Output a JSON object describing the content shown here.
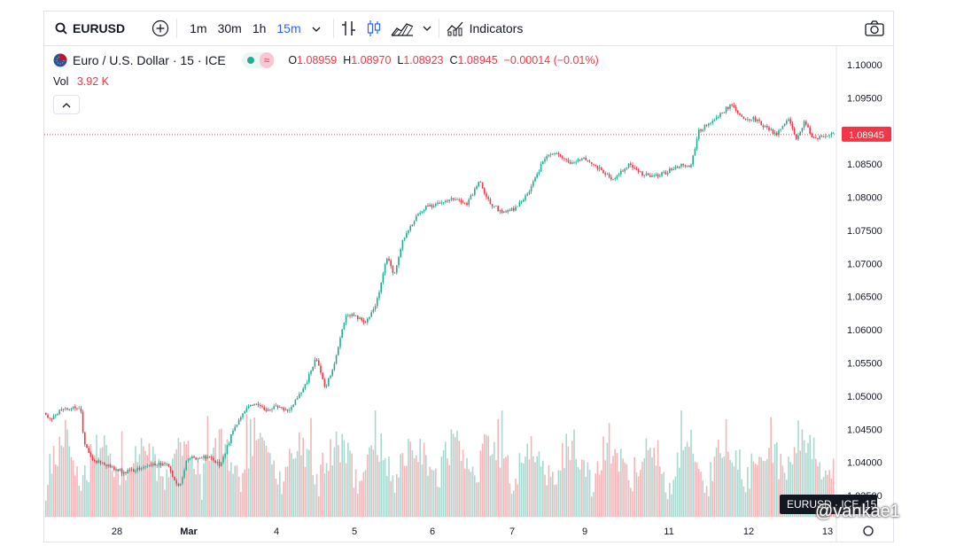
{
  "toolbar": {
    "symbol": "EURUSD",
    "intervals": [
      "1m",
      "30m",
      "1h",
      "15m"
    ],
    "active_interval": "15m",
    "indicators_label": "Indicators"
  },
  "legend": {
    "title": "Euro / U.S. Dollar · 15 · ICE",
    "open_label": "O",
    "open": "1.08959",
    "high_label": "H",
    "high": "1.08970",
    "low_label": "L",
    "low": "1.08923",
    "close_label": "C",
    "close": "1.08945",
    "change": "−0.00014 (−0.01%)"
  },
  "volume": {
    "label": "Vol",
    "value": "3.92 K"
  },
  "price_tag": "1.08945",
  "symbol_tag": "EURUSD · ICE, 15",
  "watermark": "@vankae1",
  "colors": {
    "up": "#22ab94",
    "down": "#f23645",
    "up_vol": "#a8d8d0",
    "down_vol": "#f5b5b8"
  },
  "chart_data": {
    "type": "candlestick",
    "ylim": [
      1.0318,
      1.1028
    ],
    "y_ticks": [
      "1.10000",
      "1.09500",
      "1.09000",
      "1.08500",
      "1.08000",
      "1.07500",
      "1.07000",
      "1.06500",
      "1.06000",
      "1.05500",
      "1.05000",
      "1.04500",
      "1.04000",
      "1.03500"
    ],
    "x_ticks": [
      "28",
      "Mar",
      "4",
      "5",
      "6",
      "7",
      "9",
      "11",
      "12",
      "13"
    ],
    "last_price": 1.08945,
    "path_series": {
      "name": "EURUSD close (approx.)",
      "points": [
        [
          0,
          1.0475
        ],
        [
          6,
          1.0465
        ],
        [
          16,
          1.0477
        ],
        [
          28,
          1.0482
        ],
        [
          40,
          1.0484
        ],
        [
          44,
          1.0428
        ],
        [
          54,
          1.0405
        ],
        [
          70,
          1.0395
        ],
        [
          88,
          1.0385
        ],
        [
          106,
          1.039
        ],
        [
          124,
          1.0398
        ],
        [
          140,
          1.0395
        ],
        [
          148,
          1.0365
        ],
        [
          154,
          1.037
        ],
        [
          160,
          1.0405
        ],
        [
          174,
          1.0408
        ],
        [
          188,
          1.0407
        ],
        [
          198,
          1.0395
        ],
        [
          210,
          1.044
        ],
        [
          226,
          1.048
        ],
        [
          238,
          1.0487
        ],
        [
          246,
          1.048
        ],
        [
          260,
          1.0483
        ],
        [
          276,
          1.048
        ],
        [
          292,
          1.051
        ],
        [
          306,
          1.056
        ],
        [
          316,
          1.051
        ],
        [
          328,
          1.0555
        ],
        [
          340,
          1.0625
        ],
        [
          352,
          1.062
        ],
        [
          362,
          1.0612
        ],
        [
          374,
          1.064
        ],
        [
          386,
          1.071
        ],
        [
          394,
          1.068
        ],
        [
          404,
          1.0735
        ],
        [
          416,
          1.0765
        ],
        [
          430,
          1.0785
        ],
        [
          446,
          1.0792
        ],
        [
          460,
          1.08
        ],
        [
          476,
          1.0788
        ],
        [
          490,
          1.0825
        ],
        [
          500,
          1.0795
        ],
        [
          514,
          1.0778
        ],
        [
          530,
          1.0782
        ],
        [
          548,
          1.0812
        ],
        [
          564,
          1.086
        ],
        [
          578,
          1.0865
        ],
        [
          592,
          1.085
        ],
        [
          608,
          1.0858
        ],
        [
          624,
          1.0845
        ],
        [
          642,
          1.0825
        ],
        [
          658,
          1.085
        ],
        [
          672,
          1.0836
        ],
        [
          686,
          1.083
        ],
        [
          702,
          1.0838
        ],
        [
          718,
          1.085
        ],
        [
          728,
          1.0845
        ],
        [
          738,
          1.09
        ],
        [
          750,
          1.0912
        ],
        [
          762,
          1.0925
        ],
        [
          774,
          1.094
        ],
        [
          786,
          1.092
        ],
        [
          800,
          1.0918
        ],
        [
          814,
          1.0905
        ],
        [
          826,
          1.0895
        ],
        [
          838,
          1.092
        ],
        [
          848,
          1.0888
        ],
        [
          858,
          1.0915
        ],
        [
          866,
          1.089
        ],
        [
          876,
          1.089
        ],
        [
          890,
          1.0895
        ]
      ]
    }
  }
}
